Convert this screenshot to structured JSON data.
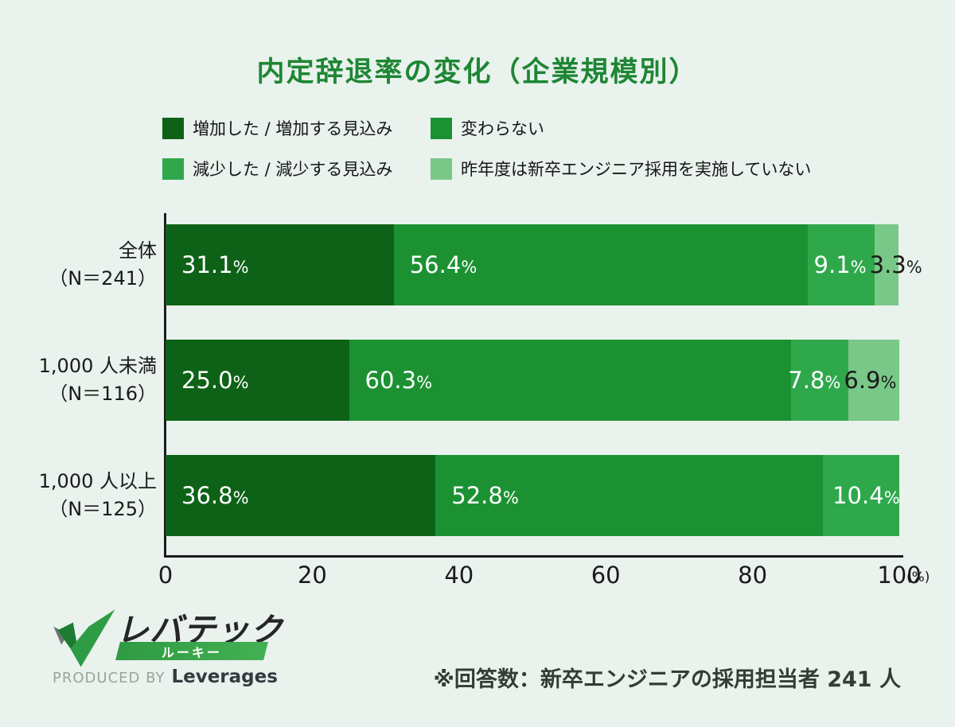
{
  "title": "内定辞退率の変化（企業規模別）",
  "legend": [
    {
      "label": "増加した / 増加する見込み",
      "color": "#0e6217"
    },
    {
      "label": "変わらない",
      "color": "#1c9132"
    },
    {
      "label": "減少した / 減少する見込み",
      "color": "#2fa84c"
    },
    {
      "label": "昨年度は新卒エンジニア採用を実施していない",
      "color": "#79c888"
    }
  ],
  "chart_data": {
    "type": "bar",
    "stacked": true,
    "orientation": "horizontal",
    "title": "内定辞退率の変化（企業規模別）",
    "categories": [
      "全体",
      "1,000 人未満",
      "1,000 人以上"
    ],
    "category_sublabels": [
      "（N＝241）",
      "（N＝116）",
      "（N＝125）"
    ],
    "series": [
      {
        "name": "増加した / 増加する見込み",
        "color": "#0e6217",
        "values": [
          31.1,
          25.0,
          36.8
        ]
      },
      {
        "name": "変わらない",
        "color": "#1c9132",
        "values": [
          56.4,
          60.3,
          52.8
        ]
      },
      {
        "name": "減少した / 減少する見込み",
        "color": "#2fa84c",
        "values": [
          9.1,
          7.8,
          10.4
        ]
      },
      {
        "name": "昨年度は新卒エンジニア採用を実施していない",
        "color": "#79c888",
        "values": [
          3.3,
          6.9,
          0
        ]
      }
    ],
    "value_labels": [
      [
        "31.1",
        "56.4",
        "9.1",
        "3.3"
      ],
      [
        "25.0",
        "60.3",
        "7.8",
        "6.9"
      ],
      [
        "36.8",
        "52.8",
        "10.4",
        ""
      ]
    ],
    "xlim": [
      0,
      100
    ],
    "xticks": [
      "0",
      "20",
      "40",
      "60",
      "80",
      "100"
    ],
    "x_unit": "(%)",
    "grid": false,
    "legend_position": "top"
  },
  "axis": {
    "unit": "(%)"
  },
  "percent_sign": "%",
  "logo": {
    "wordmark": "レバテック",
    "banner": "ルーキー",
    "produced_by": "PRODUCED BY",
    "company": "Leverages"
  },
  "footnote": "※回答数：新卒エンジニアの採用担当者 241 人",
  "colors": {
    "background": "#e9f2ec",
    "title": "#1e8634",
    "axis": "#1c1c1c",
    "text": "#1a1a1a",
    "label_on_dark": "#ffffff",
    "label_on_light": "#1a1a1a"
  }
}
